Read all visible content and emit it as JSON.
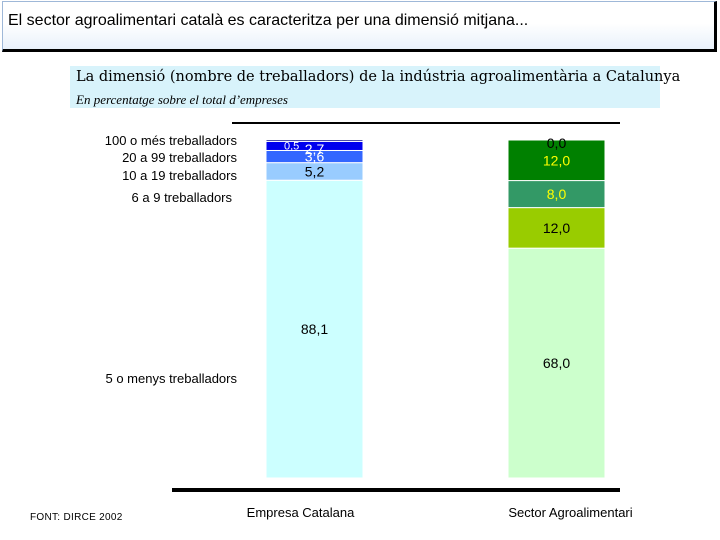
{
  "header": {
    "title": "El sector agroalimentari català es caracteritza per una dimensió mitjana..."
  },
  "chart_data": {
    "type": "bar",
    "stacked": true,
    "title": "La dimensió (nombre de treballadors) de la indústria agroalimentària a Catalunya",
    "subtitle": "En percentatge sobre el total d’empreses",
    "categories": [
      "Empresa Catalana",
      "Sector Agroalimentari"
    ],
    "series": [
      {
        "name": "5 o menys treballadors",
        "values": [
          88.1,
          68.0
        ],
        "labels": [
          "88,1",
          "68,0"
        ],
        "colors": [
          "#ccffff",
          "#ccffcc"
        ]
      },
      {
        "name": "6 a 9 treballadors",
        "values": [
          5.2,
          12.0
        ],
        "labels": [
          "5,2",
          "12,0"
        ],
        "colors": [
          "#99ccff",
          "#99cc00"
        ]
      },
      {
        "name": "10 a 19 treballadors",
        "values": [
          3.6,
          8.0
        ],
        "labels": [
          "3,6",
          "8,0"
        ],
        "colors": [
          "#3366ff",
          "#339966"
        ]
      },
      {
        "name": "20 a 99 treballadors",
        "values": [
          2.7,
          12.0
        ],
        "labels": [
          "2,7",
          "12,0"
        ],
        "colors": [
          "#0000ee",
          "#008000"
        ]
      },
      {
        "name": "100 o més treballadors",
        "values": [
          0.5,
          0.0
        ],
        "labels": [
          "0,5",
          "0,0"
        ],
        "colors": [
          "#000080",
          "#003300"
        ]
      }
    ],
    "ylim": [
      0,
      100
    ],
    "grid": false,
    "legend": "left"
  },
  "source": "FONT: DIRCE 2002"
}
